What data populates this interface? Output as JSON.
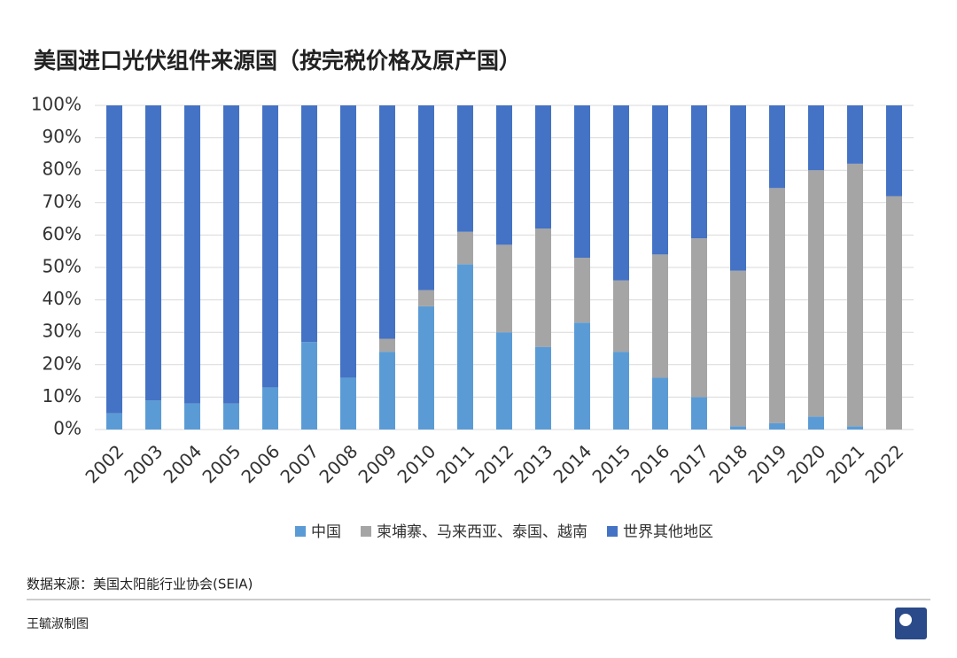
{
  "chart_data": {
    "type": "stacked-bar",
    "title": "美国进口光伏组件来源国（按完税价格及原产国）",
    "source": "数据来源：美国太阳能行业协会(SEIA)",
    "credit": "王毓淑制图",
    "categories": [
      "2002",
      "2003",
      "2004",
      "2005",
      "2006",
      "2007",
      "2008",
      "2009",
      "2010",
      "2011",
      "2012",
      "2013",
      "2014",
      "2015",
      "2016",
      "2017",
      "2018",
      "2019",
      "2020",
      "2021",
      "2022"
    ],
    "series": [
      {
        "name": "中国",
        "color": "#5b9bd5",
        "values": [
          5,
          9,
          8,
          8,
          13,
          27,
          16,
          24,
          38,
          51,
          30,
          25.5,
          33,
          24,
          16,
          10,
          1,
          2,
          4,
          1,
          0
        ]
      },
      {
        "name": "柬埔寨、马来西亚、泰国、越南",
        "color": "#a5a5a5",
        "values": [
          0,
          0,
          0,
          0,
          0,
          0,
          0,
          4,
          5,
          10,
          27,
          36.5,
          20,
          22,
          38,
          49,
          48,
          72.5,
          76,
          81,
          72
        ]
      },
      {
        "name": "世界其他地区",
        "color": "#4472c4",
        "values": [
          95,
          91,
          92,
          92,
          87,
          73,
          84,
          72,
          57,
          39,
          43,
          38,
          47,
          54,
          46,
          41,
          51,
          25.5,
          20,
          18,
          28
        ]
      }
    ],
    "ylim": [
      0,
      100
    ],
    "yticks": [
      {
        "value": 0,
        "label": "0%"
      },
      {
        "value": 10,
        "label": "10%"
      },
      {
        "value": 20,
        "label": "20%"
      },
      {
        "value": 30,
        "label": "30%"
      },
      {
        "value": 40,
        "label": "40%"
      },
      {
        "value": 50,
        "label": "50%"
      },
      {
        "value": 60,
        "label": "60%"
      },
      {
        "value": 70,
        "label": "70%"
      },
      {
        "value": 80,
        "label": "80%"
      },
      {
        "value": 90,
        "label": "90%"
      },
      {
        "value": 100,
        "label": "100%"
      }
    ],
    "grid": true,
    "legend": "bottom"
  }
}
